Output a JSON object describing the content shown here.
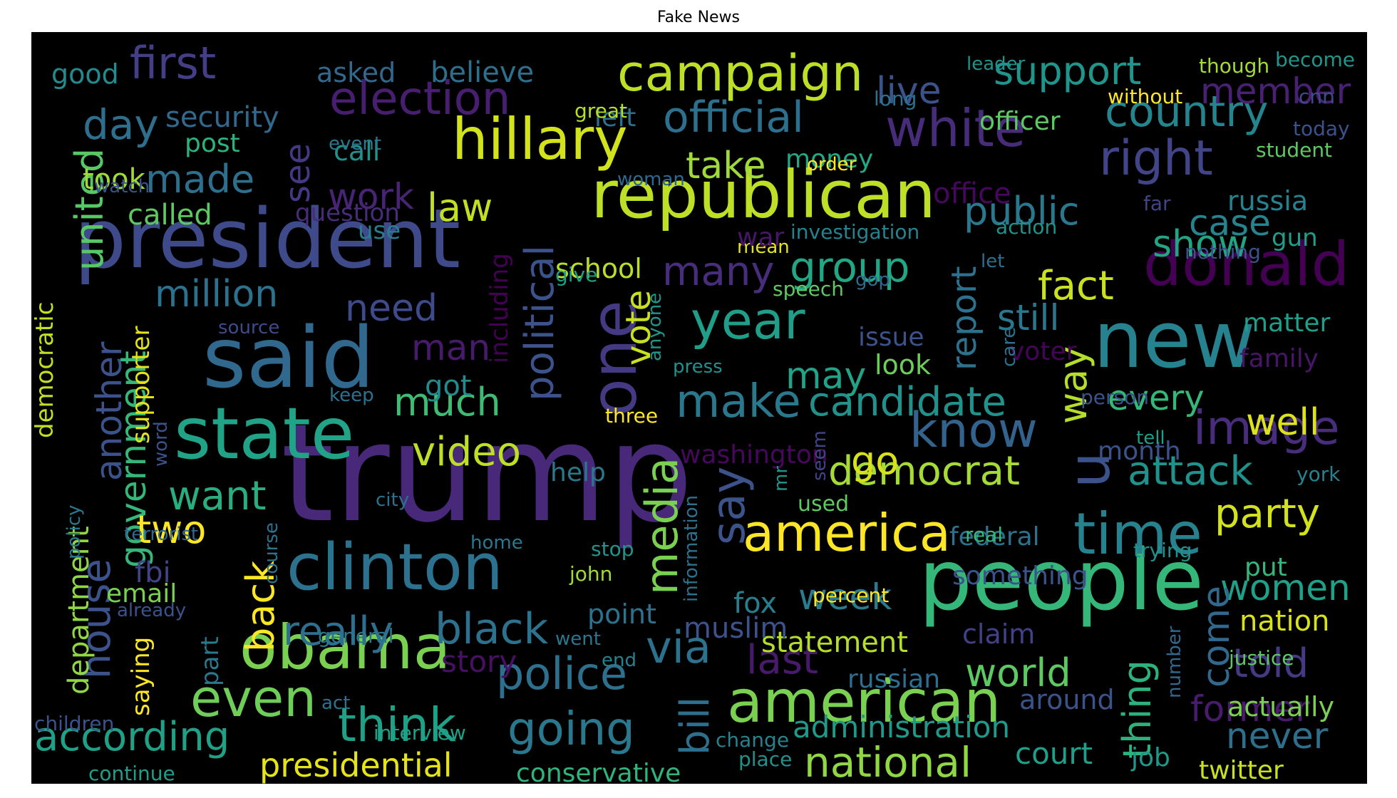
{
  "title": "Fake News",
  "background_color": "#000000",
  "words": [
    {
      "text": "trump",
      "color": "#482878"
    },
    {
      "text": "president",
      "color": "#3e4a89"
    },
    {
      "text": "people",
      "color": "#35b779"
    },
    {
      "text": "said",
      "color": "#31688e"
    },
    {
      "text": "state",
      "color": "#20a386"
    },
    {
      "text": "republican",
      "color": "#bddf26"
    },
    {
      "text": "clinton",
      "color": "#2c728e"
    },
    {
      "text": "new",
      "color": "#26828e"
    },
    {
      "text": "one",
      "color": "#443983"
    },
    {
      "text": "obama",
      "color": "#7ad151"
    },
    {
      "text": "american",
      "color": "#7ad151"
    },
    {
      "text": "hillary",
      "color": "#d2e21b"
    },
    {
      "text": "donald",
      "color": "#440154"
    },
    {
      "text": "time",
      "color": "#26828e"
    },
    {
      "text": "america",
      "color": "#fde725"
    },
    {
      "text": "campaign",
      "color": "#bddf26"
    },
    {
      "text": "year",
      "color": "#1f9e89"
    },
    {
      "text": "white",
      "color": "#472c7a"
    },
    {
      "text": "election",
      "color": "#481f70"
    },
    {
      "text": "u",
      "color": "#3b528b"
    },
    {
      "text": "even",
      "color": "#6ece58"
    },
    {
      "text": "going",
      "color": "#2a788e"
    },
    {
      "text": "right",
      "color": "#414487"
    },
    {
      "text": "think",
      "color": "#1fa187"
    },
    {
      "text": "know",
      "color": "#33638d"
    },
    {
      "text": "official",
      "color": "#2d708e"
    },
    {
      "text": "media",
      "color": "#7ad151"
    },
    {
      "text": "first",
      "color": "#433e85"
    },
    {
      "text": "country",
      "color": "#25858e"
    },
    {
      "text": "make",
      "color": "#2a788e"
    },
    {
      "text": "image",
      "color": "#472d7b"
    },
    {
      "text": "police",
      "color": "#2d708e"
    },
    {
      "text": "black",
      "color": "#2c728e"
    },
    {
      "text": "say",
      "color": "#3b528b"
    },
    {
      "text": "political",
      "color": "#3b528b"
    },
    {
      "text": "national",
      "color": "#8fd744"
    },
    {
      "text": "via",
      "color": "#2c728e"
    },
    {
      "text": "really",
      "color": "#2e6e8e"
    },
    {
      "text": "candidate",
      "color": "#21918c"
    },
    {
      "text": "support",
      "color": "#1f958b"
    },
    {
      "text": "many",
      "color": "#472d7b"
    },
    {
      "text": "according",
      "color": "#1fa187"
    },
    {
      "text": "democrat",
      "color": "#a5db36"
    },
    {
      "text": "group",
      "color": "#22a785"
    },
    {
      "text": "united",
      "color": "#58c765"
    },
    {
      "text": "government",
      "color": "#35b779"
    },
    {
      "text": "house",
      "color": "#3b528b"
    },
    {
      "text": "attack",
      "color": "#21918c"
    },
    {
      "text": "public",
      "color": "#2a788e"
    },
    {
      "text": "video",
      "color": "#bddf26"
    },
    {
      "text": "party",
      "color": "#d2e21b"
    },
    {
      "text": "last",
      "color": "#481a6c"
    },
    {
      "text": "way",
      "color": "#b5de2b"
    },
    {
      "text": "member",
      "color": "#482173"
    },
    {
      "text": "live",
      "color": "#3b528b"
    },
    {
      "text": "back",
      "color": "#fde725"
    },
    {
      "text": "world",
      "color": "#5ec962"
    },
    {
      "text": "thing",
      "color": "#2db27d"
    },
    {
      "text": "want",
      "color": "#28ae80"
    },
    {
      "text": "much",
      "color": "#3fbc73"
    },
    {
      "text": "fact",
      "color": "#cae11f"
    },
    {
      "text": "presidential",
      "color": "#e5e419"
    },
    {
      "text": "administration",
      "color": "#1f9a8a"
    },
    {
      "text": "women",
      "color": "#1fa088"
    },
    {
      "text": "day",
      "color": "#2e6f8e"
    },
    {
      "text": "made",
      "color": "#2d708e"
    },
    {
      "text": "million",
      "color": "#2c728e"
    },
    {
      "text": "never",
      "color": "#2d708e"
    },
    {
      "text": "take",
      "color": "#9fda3a"
    },
    {
      "text": "show",
      "color": "#21a685"
    },
    {
      "text": "report",
      "color": "#2c728e"
    },
    {
      "text": "come",
      "color": "#31688e"
    },
    {
      "text": "told",
      "color": "#443983"
    },
    {
      "text": "former",
      "color": "#481b6d"
    },
    {
      "text": "law",
      "color": "#c2df23"
    },
    {
      "text": "still",
      "color": "#2a788e"
    },
    {
      "text": "case",
      "color": "#25848e"
    },
    {
      "text": "may",
      "color": "#20a386"
    },
    {
      "text": "well",
      "color": "#dde318"
    },
    {
      "text": "go",
      "color": "#d8e219"
    },
    {
      "text": "every",
      "color": "#35b779"
    },
    {
      "text": "two",
      "color": "#fde725"
    },
    {
      "text": "another",
      "color": "#3b528b"
    },
    {
      "text": "week",
      "color": "#287c8e"
    },
    {
      "text": "court",
      "color": "#1f9e89"
    },
    {
      "text": "bill",
      "color": "#2d708e"
    },
    {
      "text": "need",
      "color": "#3e4a89"
    },
    {
      "text": "man",
      "color": "#481a6c"
    },
    {
      "text": "see",
      "color": "#443983"
    },
    {
      "text": "work",
      "color": "#482475"
    },
    {
      "text": "security",
      "color": "#31688e"
    },
    {
      "text": "story",
      "color": "#471063"
    },
    {
      "text": "statement",
      "color": "#b5de2b"
    },
    {
      "text": "conservative",
      "color": "#2fb47c"
    },
    {
      "text": "twitter",
      "color": "#c8e020"
    },
    {
      "text": "job",
      "color": "#1f9a8a"
    },
    {
      "text": "nation",
      "color": "#d8e219"
    },
    {
      "text": "actually",
      "color": "#7ad151"
    },
    {
      "text": "office",
      "color": "#46085c"
    },
    {
      "text": "muslim",
      "color": "#3b528b"
    },
    {
      "text": "russia",
      "color": "#26828e"
    },
    {
      "text": "federal",
      "color": "#2c728e"
    },
    {
      "text": "fox",
      "color": "#277f8e"
    },
    {
      "text": "something",
      "color": "#3b528b"
    },
    {
      "text": "russian",
      "color": "#2e6e8e"
    },
    {
      "text": "department",
      "color": "#90d743"
    },
    {
      "text": "democratic",
      "color": "#c2df23"
    },
    {
      "text": "supporter",
      "color": "#e2e418"
    },
    {
      "text": "called",
      "color": "#5ec962"
    },
    {
      "text": "school",
      "color": "#b8de29"
    },
    {
      "text": "vote",
      "color": "#c8e020"
    },
    {
      "text": "including",
      "color": "#440154"
    },
    {
      "text": "matter",
      "color": "#1f9e89"
    },
    {
      "text": "family",
      "color": "#481567"
    },
    {
      "text": "around",
      "color": "#3b528b"
    },
    {
      "text": "claim",
      "color": "#424086"
    },
    {
      "text": "point",
      "color": "#2c728e"
    },
    {
      "text": "fbi",
      "color": "#414487"
    },
    {
      "text": "email",
      "color": "#7ad151"
    },
    {
      "text": "post",
      "color": "#2db27d"
    },
    {
      "text": "call",
      "color": "#20928c"
    },
    {
      "text": "took",
      "color": "#a0da39"
    },
    {
      "text": "asked",
      "color": "#31688e"
    },
    {
      "text": "believe",
      "color": "#2d708e"
    },
    {
      "text": "good",
      "color": "#238a8d"
    },
    {
      "text": "left",
      "color": "#2c728e"
    },
    {
      "text": "question",
      "color": "#472c7a"
    },
    {
      "text": "use",
      "color": "#287c8e"
    },
    {
      "text": "money",
      "color": "#22a884"
    },
    {
      "text": "officer",
      "color": "#5ec962"
    },
    {
      "text": "month",
      "color": "#3b528b"
    },
    {
      "text": "issue",
      "color": "#3b528b"
    },
    {
      "text": "look",
      "color": "#6ccd5a"
    },
    {
      "text": "got",
      "color": "#238a8d"
    },
    {
      "text": "help",
      "color": "#2a788e"
    },
    {
      "text": "gun",
      "color": "#1f9e89"
    },
    {
      "text": "voter",
      "color": "#450457"
    },
    {
      "text": "put",
      "color": "#35b779"
    },
    {
      "text": "saying",
      "color": "#fde725"
    },
    {
      "text": "part",
      "color": "#2a788e"
    },
    {
      "text": "washington",
      "color": "#46085c"
    },
    {
      "text": "interview",
      "color": "#1fa187"
    },
    {
      "text": "general",
      "color": "#2a788e"
    },
    {
      "text": "children",
      "color": "#3b528b"
    },
    {
      "text": "continue",
      "color": "#1f9e89"
    },
    {
      "text": "change",
      "color": "#26828e"
    },
    {
      "text": "place",
      "color": "#20928c"
    },
    {
      "text": "stop",
      "color": "#1f958b"
    },
    {
      "text": "john",
      "color": "#a0da39"
    },
    {
      "text": "percent",
      "color": "#fde725"
    },
    {
      "text": "used",
      "color": "#5ec962"
    },
    {
      "text": "three",
      "color": "#fde725"
    },
    {
      "text": "press",
      "color": "#21918c"
    },
    {
      "text": "keep",
      "color": "#2c728e"
    },
    {
      "text": "source",
      "color": "#3e4a89"
    },
    {
      "text": "speech",
      "color": "#5ec962"
    },
    {
      "text": "gop",
      "color": "#31688e"
    },
    {
      "text": "give",
      "color": "#1fa187"
    },
    {
      "text": "mean",
      "color": "#e5e419"
    },
    {
      "text": "war",
      "color": "#481668"
    },
    {
      "text": "investigation",
      "color": "#26828e"
    },
    {
      "text": "action",
      "color": "#20928c"
    },
    {
      "text": "let",
      "color": "#2e6e8e"
    },
    {
      "text": "nothing",
      "color": "#3b528b"
    },
    {
      "text": "far",
      "color": "#414487"
    },
    {
      "text": "student",
      "color": "#5ec962"
    },
    {
      "text": "today",
      "color": "#3b528b"
    },
    {
      "text": "cnn",
      "color": "#3e4a89"
    },
    {
      "text": "become",
      "color": "#1f958b"
    },
    {
      "text": "though",
      "color": "#a5db36"
    },
    {
      "text": "without",
      "color": "#fde725"
    },
    {
      "text": "leader",
      "color": "#21918c"
    },
    {
      "text": "long",
      "color": "#2c728e"
    },
    {
      "text": "great",
      "color": "#b5de2b"
    },
    {
      "text": "event",
      "color": "#2a788e"
    },
    {
      "text": "woman",
      "color": "#31688e"
    },
    {
      "text": "order",
      "color": "#fde725"
    },
    {
      "text": "watch",
      "color": "#3b528b"
    },
    {
      "text": "anyone",
      "color": "#1f958b"
    },
    {
      "text": "care",
      "color": "#2c728e"
    },
    {
      "text": "person",
      "color": "#3b528b"
    },
    {
      "text": "tell",
      "color": "#1f9e89"
    },
    {
      "text": "york",
      "color": "#26828e"
    },
    {
      "text": "trying",
      "color": "#21918c"
    },
    {
      "text": "real",
      "color": "#35b779"
    },
    {
      "text": "justice",
      "color": "#5ec962"
    },
    {
      "text": "number",
      "color": "#31688e"
    },
    {
      "text": "end",
      "color": "#26828e"
    },
    {
      "text": "went",
      "color": "#2a788e"
    },
    {
      "text": "act",
      "color": "#2c728e"
    },
    {
      "text": "already",
      "color": "#3b528b"
    },
    {
      "text": "home",
      "color": "#2a788e"
    },
    {
      "text": "city",
      "color": "#2c728e"
    },
    {
      "text": "terrorist",
      "color": "#31688e"
    },
    {
      "text": "course",
      "color": "#2c728e"
    },
    {
      "text": "policy",
      "color": "#2a788e"
    },
    {
      "text": "word",
      "color": "#3b528b"
    },
    {
      "text": "information",
      "color": "#2c728e"
    },
    {
      "text": "seem",
      "color": "#414487"
    },
    {
      "text": "mr",
      "color": "#1f958b"
    }
  ]
}
